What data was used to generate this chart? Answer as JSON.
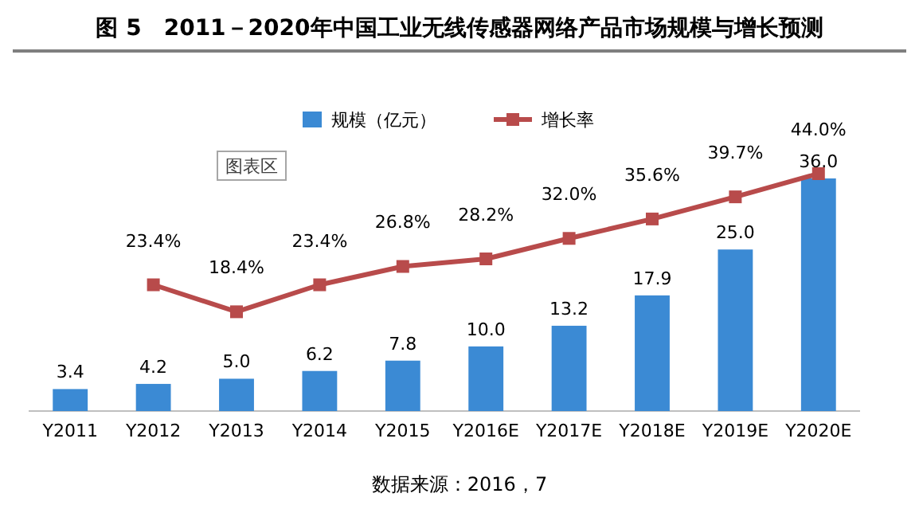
{
  "chart_data": {
    "type": "bar",
    "title": "图 5　2011－2020年中国工业无线传感器网络产品市场规模与增长预测",
    "categories": [
      "Y2011",
      "Y2012",
      "Y2013",
      "Y2014",
      "Y2015",
      "Y2016E",
      "Y2017E",
      "Y2018E",
      "Y2019E",
      "Y2020E"
    ],
    "series": [
      {
        "name": "规模（亿元）",
        "color": "#3b8ad4",
        "values": [
          3.4,
          4.2,
          5.0,
          6.2,
          7.8,
          10.0,
          13.2,
          17.9,
          25.0,
          36.0
        ],
        "value_labels": [
          "3.4",
          "4.2",
          "5.0",
          "6.2",
          "7.8",
          "10.0",
          "13.2",
          "17.9",
          "25.0",
          "36.0"
        ]
      },
      {
        "name": "增长率",
        "type": "line",
        "axis": "y2",
        "color": "#b84b4b",
        "marker": "square",
        "values": [
          null,
          23.4,
          18.4,
          23.4,
          26.8,
          28.2,
          32.0,
          35.6,
          39.7,
          44.0
        ],
        "value_labels": [
          null,
          "23.4%",
          "18.4%",
          "23.4%",
          "26.8%",
          "28.2%",
          "32.0%",
          "35.6%",
          "39.7%",
          "44.0%"
        ]
      }
    ],
    "legend": "top",
    "annotations": [
      "图表区",
      "数据来源：2016，7"
    ]
  }
}
